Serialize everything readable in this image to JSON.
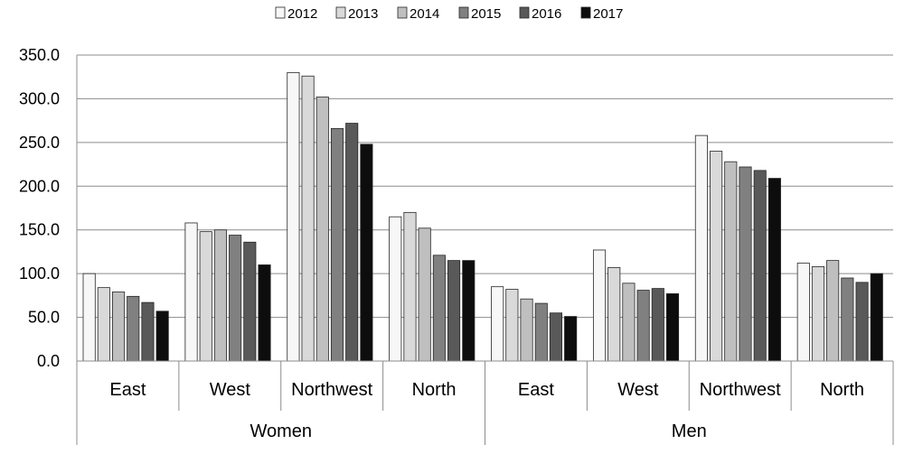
{
  "chart_data": {
    "type": "bar",
    "groups": [
      {
        "label": "Women",
        "categories": [
          "East",
          "West",
          "Northwest",
          "North"
        ]
      },
      {
        "label": "Men",
        "categories": [
          "East",
          "West",
          "Northwest",
          "North"
        ]
      }
    ],
    "series": [
      {
        "name": "2012",
        "color": "#f7f7f7",
        "values": [
          100,
          158,
          330,
          165,
          85,
          127,
          258,
          112
        ]
      },
      {
        "name": "2013",
        "color": "#d9d9d9",
        "values": [
          84,
          148,
          326,
          170,
          82,
          107,
          240,
          108
        ]
      },
      {
        "name": "2014",
        "color": "#bfbfbf",
        "values": [
          79,
          150,
          302,
          152,
          71,
          89,
          228,
          115
        ]
      },
      {
        "name": "2015",
        "color": "#808080",
        "values": [
          74,
          144,
          266,
          121,
          66,
          81,
          222,
          95
        ]
      },
      {
        "name": "2016",
        "color": "#595959",
        "values": [
          67,
          136,
          272,
          115,
          55,
          83,
          218,
          90
        ]
      },
      {
        "name": "2017",
        "color": "#0d0d0d",
        "values": [
          57,
          110,
          248,
          115,
          51,
          77,
          209,
          100
        ]
      }
    ],
    "ylim": [
      0,
      350
    ],
    "yticks": [
      "0.0",
      "50.0",
      "100.0",
      "150.0",
      "200.0",
      "250.0",
      "300.0",
      "350.0"
    ],
    "grid": true,
    "legend_position": "top"
  }
}
